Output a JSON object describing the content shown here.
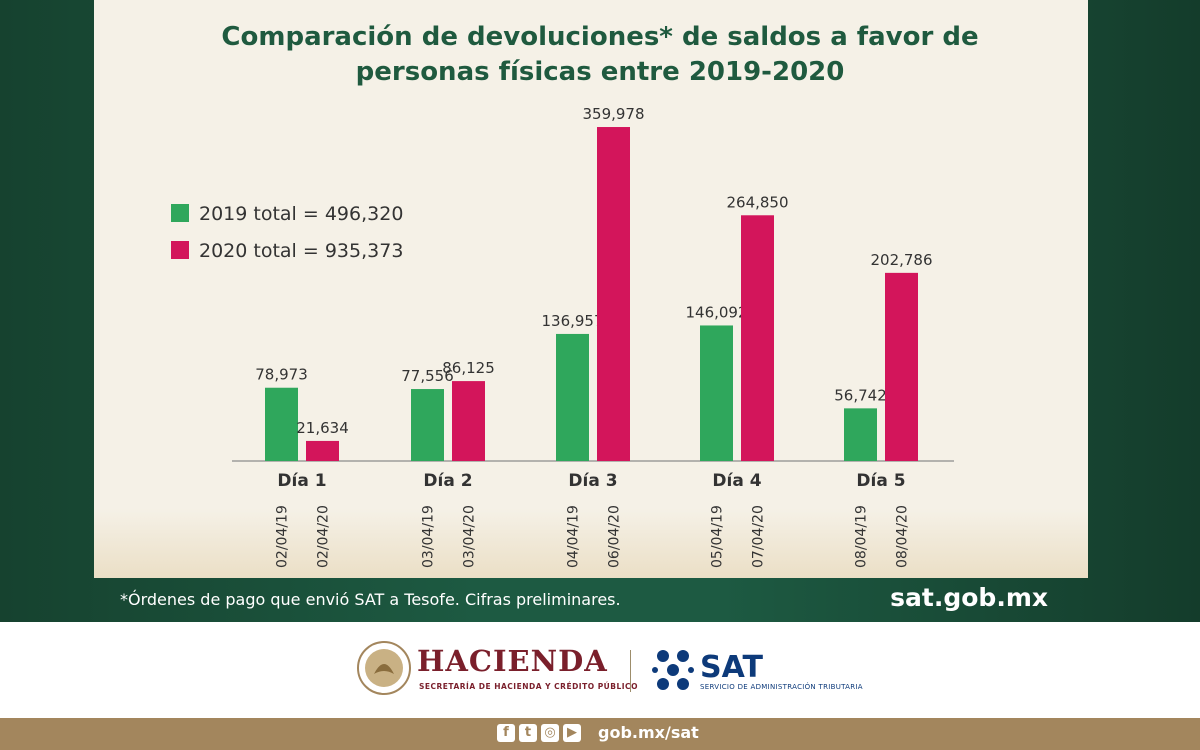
{
  "title_line1_bold": "Comparación de devoluciones*",
  "title_line1_rest": " de saldos a favor de",
  "title_line2": "personas físicas entre 2019-2020",
  "footnote": "*Órdenes de pago que envió SAT a Tesofe. Cifras preliminares.",
  "site": "sat.gob.mx",
  "hacienda": {
    "name": "HACIENDA",
    "subtitle": "SECRETARÍA DE HACIENDA Y CRÉDITO PÚBLICO"
  },
  "sat": {
    "name": "SAT",
    "subtitle": "SERVICIO DE ADMINISTRACIÓN TRIBUTARIA"
  },
  "social": {
    "icons": [
      "facebook-icon",
      "twitter-icon",
      "instagram-icon",
      "youtube-icon"
    ],
    "link": "gob.mx/sat"
  },
  "colors": {
    "green": "#2fa75c",
    "magenta": "#d3155b",
    "title": "#1f5a3f",
    "background_dark": "#1d5a42",
    "card": "#f5f1e7"
  },
  "chart_data": {
    "type": "bar",
    "categories": [
      "Día 1",
      "Día 2",
      "Día 3",
      "Día 4",
      "Día 5"
    ],
    "series": [
      {
        "name": "2019 total = 496,320",
        "color": "#2fa75c",
        "values": [
          78973,
          77556,
          136957,
          146092,
          56742
        ],
        "value_labels": [
          "78,973",
          "77,556",
          "136,957",
          "146,092",
          "56,742"
        ],
        "dates": [
          "02/04/19",
          "03/04/19",
          "04/04/19",
          "05/04/19",
          "08/04/19"
        ]
      },
      {
        "name": "2020 total = 935,373",
        "color": "#d3155b",
        "values": [
          21634,
          86125,
          359978,
          264850,
          202786
        ],
        "value_labels": [
          "21,634",
          "86,125",
          "359,978",
          "264,850",
          "202,786"
        ],
        "dates": [
          "02/04/20",
          "03/04/20",
          "06/04/20",
          "07/04/20",
          "08/04/20"
        ]
      }
    ],
    "ylim": [
      0,
      360000
    ],
    "grid": false,
    "legend_position": "upper-left"
  }
}
